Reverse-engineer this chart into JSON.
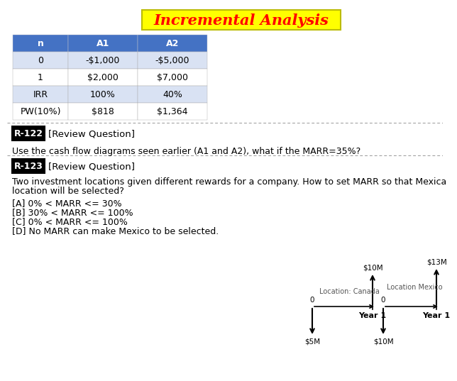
{
  "title": "Incremental Analysis",
  "title_bg": "#FFFF00",
  "title_color": "#FF0000",
  "table_header_bg": "#4472C4",
  "table_header_color": "#FFFFFF",
  "table_row_bg_even": "#D9E2F3",
  "table_row_bg_odd": "#FFFFFF",
  "table_headers": [
    "n",
    "A1",
    "A2"
  ],
  "table_rows": [
    [
      "0",
      "-$1,000",
      "-$5,000"
    ],
    [
      "1",
      "$2,000",
      "$7,000"
    ],
    [
      "IRR",
      "100%",
      "40%"
    ],
    [
      "PW(10%)",
      "$818",
      "$1,364"
    ]
  ],
  "r122_label": "R-122",
  "r122_text": "[Review Question]",
  "r122_body": "Use the cash flow diagrams seen earlier (A1 and A2), what if the MARR=35%?",
  "r123_label": "R-123",
  "r123_text": "[Review Question]",
  "r123_body_line1": "Two investment locations given different rewards for a company. How to set MARR so that Mexica",
  "r123_body_line2": "location will be selected?",
  "options": [
    "[A] 0% < MARR <= 30%",
    "[B] 30% < MARR <= 100%",
    "[C] 0% < MARR <= 100%",
    "[D] No MARR can make Mexico to be selected."
  ],
  "canada_label": "Location: Canada",
  "mexico_label": "Location Mexico",
  "canada_up": "$10M",
  "canada_down": "$5M",
  "mexico_up": "$13M",
  "mexico_down": "$10M",
  "year1": "Year 1",
  "bg_color": "#FFFFFF",
  "text_color": "#000000",
  "dash_color": "#999999"
}
